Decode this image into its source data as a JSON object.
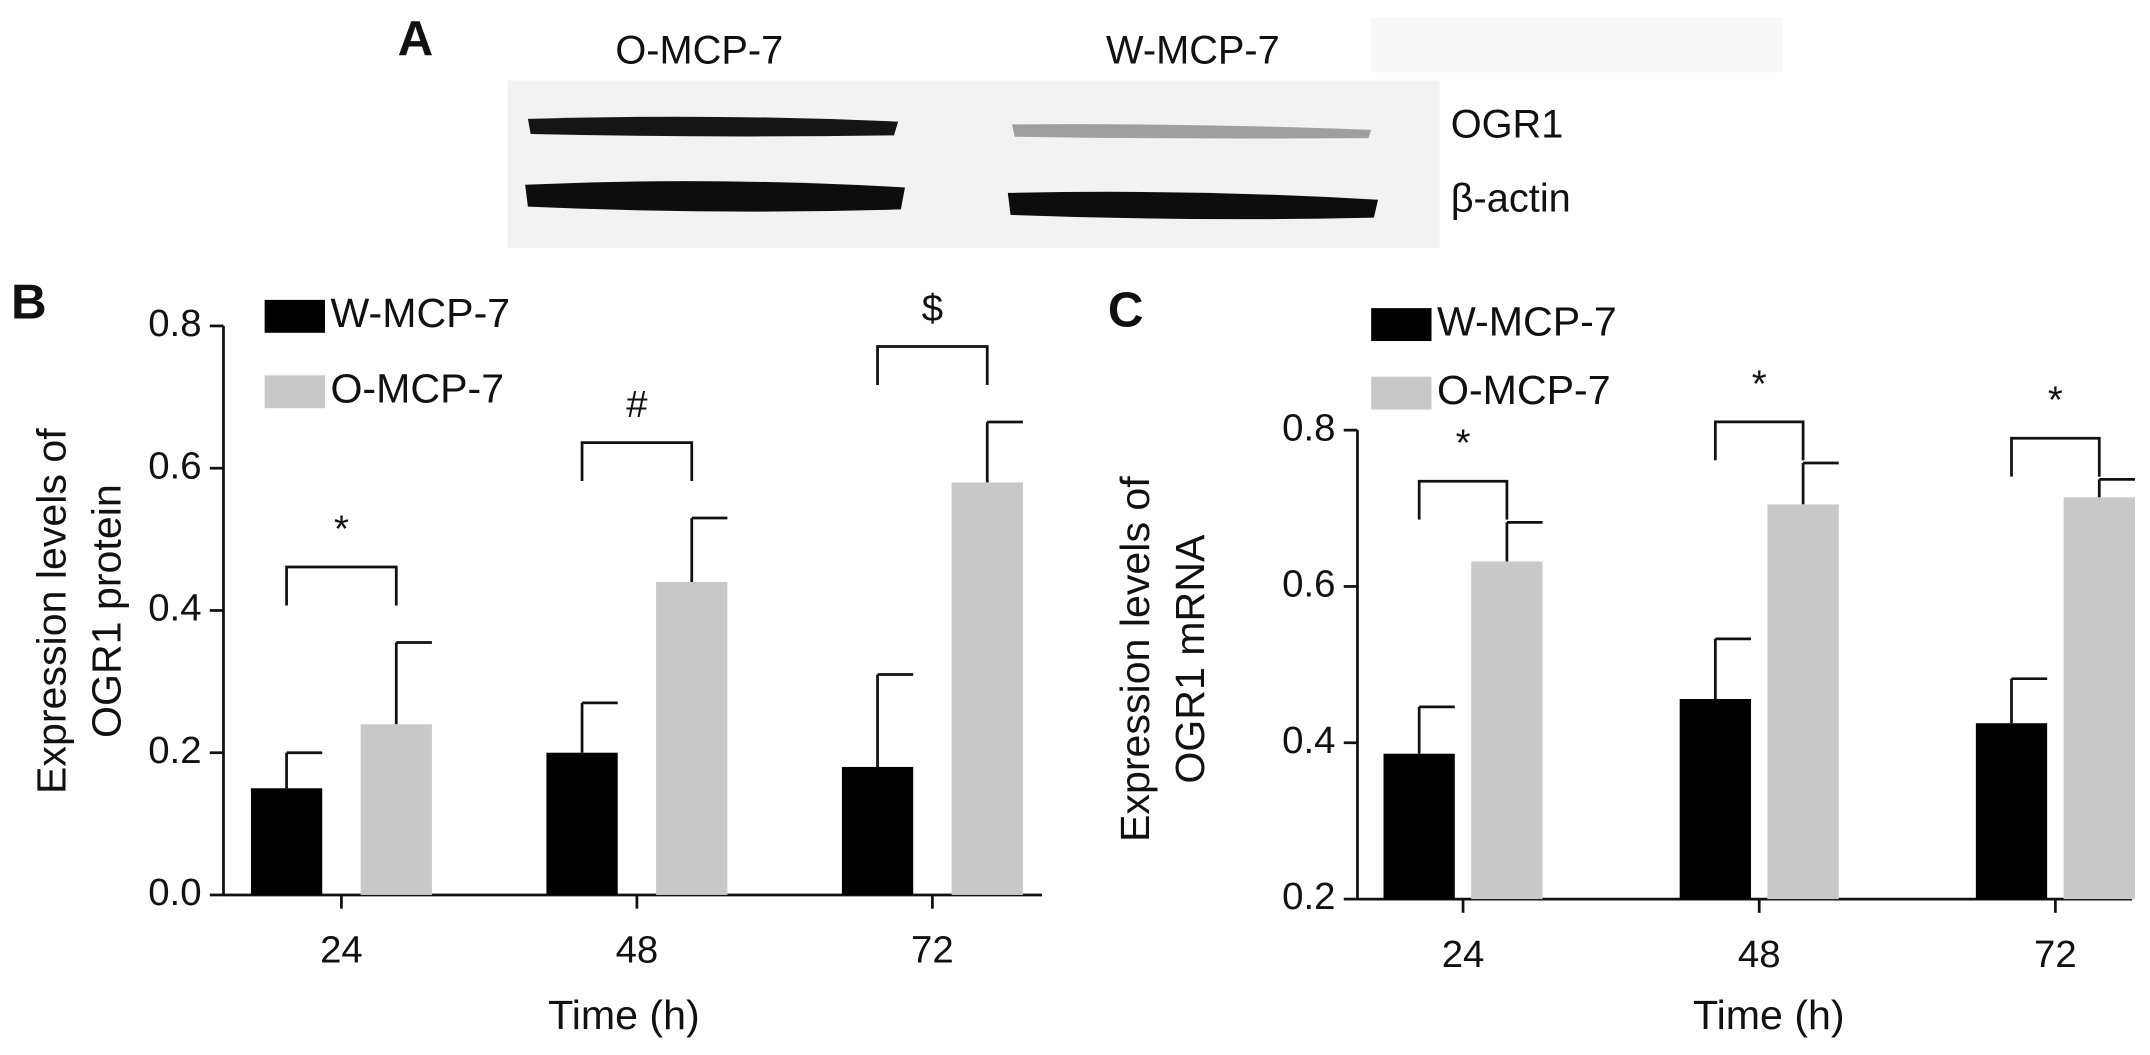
{
  "blot": {
    "label": "A",
    "lanes": [
      "O-MCP-7",
      "W-MCP-7"
    ],
    "bands": [
      "OGR1",
      "β-actin"
    ]
  },
  "chart_data": [
    {
      "type": "bar",
      "label": "B",
      "ylabel": [
        "Expression levels of",
        "OGR1 protein"
      ],
      "xlabel": "Time (h)",
      "categories": [
        "24",
        "48",
        "72"
      ],
      "series": [
        {
          "name": "W-MCP-7",
          "color": "#000000",
          "values": [
            0.15,
            0.2,
            0.18
          ],
          "errors": [
            0.05,
            0.07,
            0.13
          ]
        },
        {
          "name": "O-MCP-7",
          "color": "#c8c8c8",
          "values": [
            0.24,
            0.44,
            0.58
          ],
          "errors": [
            0.115,
            0.09,
            0.085
          ]
        }
      ],
      "annotations": [
        "*",
        "#",
        "$"
      ],
      "ylim": [
        0,
        0.8
      ],
      "yticks": [
        {
          "value": 0,
          "label": "0.0"
        },
        0.2,
        0.4,
        0.6,
        0.8
      ]
    },
    {
      "type": "bar",
      "label": "C",
      "ylabel": [
        "Expression levels of",
        "OGR1 mRNA"
      ],
      "xlabel": "Time (h)",
      "categories": [
        "24",
        "48",
        "72"
      ],
      "series": [
        {
          "name": "W-MCP-7",
          "color": "#000000",
          "values": [
            0.386,
            0.456,
            0.425
          ],
          "errors": [
            0.06,
            0.077,
            0.057
          ]
        },
        {
          "name": "O-MCP-7",
          "color": "#c8c8c8",
          "values": [
            0.632,
            0.705,
            0.714
          ],
          "errors": [
            0.05,
            0.053,
            0.023
          ]
        }
      ],
      "annotations": [
        "*",
        "*",
        "*"
      ],
      "ylim": [
        0.2,
        0.8
      ],
      "yticks": [
        0.2,
        0.4,
        0.6,
        0.8
      ]
    }
  ]
}
